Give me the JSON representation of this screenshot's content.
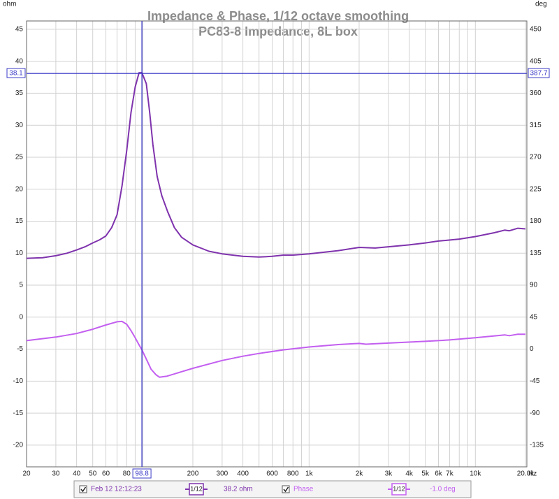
{
  "chart_data": {
    "type": "line",
    "title": "Impedance & Phase, 1/12 octave smoothing",
    "subtitle": "PC83-8 Impedance, 8L box",
    "y_label": "ohm",
    "y2_label": "deg",
    "x_label": "Hz",
    "log_x": true,
    "grid": true,
    "xlim": [
      20,
      20400
    ],
    "ylim": [
      -23.4,
      46.3
    ],
    "y2lim": [
      -165.6,
      461.7
    ],
    "xticks": [
      20,
      30,
      40,
      50,
      60,
      80,
      200,
      300,
      400,
      600,
      800,
      {
        "value": 1000,
        "label": "1k"
      },
      {
        "value": 2000,
        "label": "2k"
      },
      {
        "value": 3000,
        "label": "3k"
      },
      {
        "value": 4000,
        "label": "4k"
      },
      {
        "value": 5000,
        "label": "5k"
      },
      {
        "value": 6000,
        "label": "6k"
      },
      {
        "value": 7000,
        "label": "7k"
      },
      {
        "value": 10000,
        "label": "10k"
      },
      {
        "value": 20000,
        "label": "20.0k"
      }
    ],
    "x_minor_grid": [
      70,
      90,
      100,
      500,
      700,
      900,
      8000,
      9000
    ],
    "yticks": [
      -20,
      -15,
      -10,
      -5,
      0,
      5,
      10,
      15,
      20,
      25,
      30,
      35,
      40,
      45
    ],
    "y2ticks": [
      -135,
      -90,
      -45,
      0,
      45,
      90,
      135,
      180,
      225,
      270,
      315,
      360,
      405,
      450
    ],
    "series": [
      {
        "name": "Feb 12 12:12:23",
        "color": "#7f33ad",
        "smoothing": "1/12",
        "readout": "38.2 ohm",
        "x": [
          20,
          25,
          30,
          35,
          40,
          45,
          50,
          55,
          60,
          65,
          70,
          75,
          80,
          85,
          90,
          95,
          98.8,
          105,
          110,
          115,
          122,
          130,
          141,
          155,
          171,
          200,
          250,
          300,
          400,
          500,
          600,
          700,
          800,
          1000,
          1500,
          2000,
          2500,
          3000,
          4000,
          5000,
          6000,
          8000,
          10000,
          13000,
          15000,
          16000,
          18000,
          20000
        ],
        "values": [
          9.2,
          9.3,
          9.6,
          10.0,
          10.5,
          11.0,
          11.6,
          12.1,
          12.7,
          14.0,
          16.0,
          20.5,
          26,
          32,
          36,
          38.2,
          38.2,
          36.5,
          32,
          27,
          22,
          19,
          16.5,
          14,
          12.5,
          11.3,
          10.3,
          9.9,
          9.5,
          9.4,
          9.5,
          9.7,
          9.7,
          9.9,
          10.4,
          10.9,
          10.8,
          11.0,
          11.3,
          11.6,
          11.9,
          12.2,
          12.6,
          13.2,
          13.6,
          13.5,
          13.9,
          13.8
        ]
      },
      {
        "name": "Phase",
        "color": "#c35ff0",
        "axis": "y2",
        "smoothing": "1/12",
        "readout": "-1.0 deg",
        "x": [
          20,
          30,
          40,
          50,
          60,
          70,
          75,
          80,
          85,
          90,
          95,
          98.8,
          105,
          112,
          120,
          126,
          140,
          170,
          200,
          300,
          400,
          500,
          700,
          1000,
          1500,
          2000,
          2200,
          3000,
          5000,
          7000,
          10000,
          15000,
          16000,
          18000,
          20000
        ],
        "values": [
          12,
          17,
          22,
          28,
          34,
          38.5,
          39,
          35,
          26,
          16,
          6,
          -1,
          -14,
          -28,
          -36,
          -39.5,
          -38,
          -32,
          -27,
          -16,
          -10,
          -6,
          -1,
          3,
          6.5,
          8,
          7,
          8.5,
          11,
          13,
          16,
          20,
          19,
          21,
          21
        ]
      }
    ],
    "cursor": {
      "x": 98.8,
      "y": 38.1,
      "y2": 387.7
    }
  }
}
